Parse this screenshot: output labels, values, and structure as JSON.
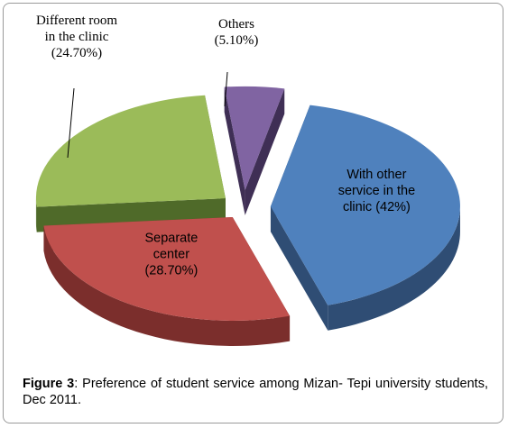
{
  "chart_data": {
    "type": "pie",
    "style": "3d-exploded",
    "slices": [
      {
        "label_lines": [
          "With other",
          "service in the",
          "clinic (42%)"
        ],
        "value": 42.0,
        "color": "#4f81bd",
        "side": "#2f4d74",
        "label_position": "inside"
      },
      {
        "label_lines": [
          "Separate",
          "center",
          "(28.70%)"
        ],
        "value": 28.7,
        "color": "#c0504d",
        "side": "#7b2e2c",
        "label_position": "inside"
      },
      {
        "label_lines": [
          "Different room",
          "in the clinic",
          "(24.70%)"
        ],
        "value": 24.7,
        "color": "#9bbb59",
        "side": "#4f6a29",
        "label_position": "outside"
      },
      {
        "label_lines": [
          "Others",
          "(5.10%)"
        ],
        "value": 5.1,
        "color": "#8064a2",
        "side": "#3f2f55",
        "label_position": "outside"
      }
    ]
  },
  "caption": {
    "figure_label": "Figure 3",
    "text": ": Preference of student service among Mizan- Tepi university students, Dec 2011."
  }
}
